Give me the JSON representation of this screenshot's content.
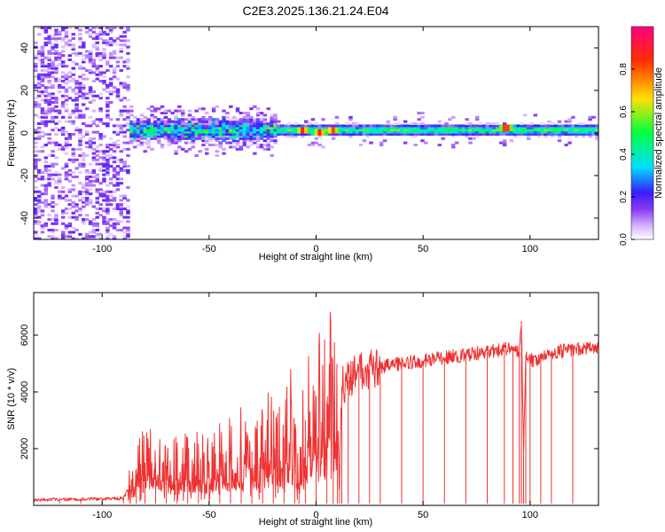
{
  "title": "C2E3.2025.136.21.24.E04",
  "colors": {
    "snr_line": "#ee3333",
    "frame": "#000000",
    "colormap": [
      "#ffffff",
      "#d8b8ff",
      "#8a3cf0",
      "#3a1cff",
      "#00e0ff",
      "#00ff40",
      "#ffe000",
      "#ff2d00",
      "#ff0080"
    ]
  },
  "chart_data": [
    {
      "type": "heatmap",
      "xlabel": "Height of straight line (km)",
      "ylabel": "Frequency (Hz)",
      "xlim": [
        -132,
        132
      ],
      "ylim": [
        -50,
        50
      ],
      "xticks": [
        -100,
        -50,
        0,
        50,
        100
      ],
      "yticks": [
        -40,
        -20,
        0,
        20,
        40
      ],
      "colorbar": {
        "label": "Normalized spectral amplitude",
        "range": [
          0,
          1
        ],
        "ticks": [
          0.0,
          0.2,
          0.4,
          0.6,
          0.8
        ]
      },
      "bands": [
        {
          "x_range": [
            -132,
            -88
          ],
          "freq_range": [
            -50,
            50
          ],
          "amplitude": 0.12,
          "texture": "scattered"
        },
        {
          "x_range": [
            -88,
            -20
          ],
          "freq_center": 1,
          "half_width": 6,
          "peak_amplitude": 0.45,
          "texture": "noisy"
        },
        {
          "x_range": [
            -20,
            132
          ],
          "freq_center": 1,
          "half_width": 3,
          "peak_amplitude": 0.55,
          "texture": "smooth"
        }
      ],
      "hotspots": [
        {
          "x": -7,
          "freq": 1,
          "amplitude": 0.9
        },
        {
          "x": 1,
          "freq": 0,
          "amplitude": 0.9
        },
        {
          "x": 7,
          "freq": 1,
          "amplitude": 0.85
        },
        {
          "x": 88,
          "freq": 2,
          "amplitude": 0.95
        }
      ]
    },
    {
      "type": "line",
      "xlabel": "Height of straight line (km)",
      "ylabel": "SNR (10 * v/v)",
      "xlim": [
        -132,
        132
      ],
      "ylim": [
        0,
        7500
      ],
      "xticks": [
        -100,
        -50,
        0,
        50,
        100
      ],
      "yticks": [
        2000,
        4000,
        6000
      ],
      "series": [
        {
          "x": [
            -132,
            -120,
            -110,
            -100,
            -90,
            -87,
            -84,
            -80,
            -75,
            -70,
            -65,
            -60,
            -55,
            -50,
            -45,
            -40,
            -35,
            -30,
            -25,
            -20,
            -15,
            -10,
            -8,
            -5,
            0,
            5,
            8,
            10,
            11,
            12,
            15,
            20,
            25,
            30,
            40,
            50,
            60,
            70,
            80,
            88,
            92,
            95,
            96,
            97,
            98,
            100,
            105,
            110,
            120,
            132
          ],
          "y": [
            200,
            200,
            220,
            230,
            250,
            700,
            1300,
            1500,
            1500,
            1400,
            1400,
            1450,
            1500,
            1500,
            1600,
            1700,
            1900,
            1900,
            2100,
            2100,
            2400,
            2700,
            800,
            3000,
            3300,
            3600,
            3800,
            2500,
            900,
            4200,
            4400,
            4700,
            4800,
            4900,
            5000,
            5100,
            5200,
            5300,
            5400,
            5500,
            5600,
            5400,
            6500,
            2000,
            5300,
            5100,
            5200,
            5400,
            5500,
            5600
          ]
        }
      ]
    }
  ]
}
